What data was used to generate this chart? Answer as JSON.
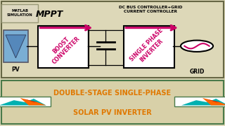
{
  "top_bg": "#ddd8b8",
  "bottom_bg": "#d8d0a8",
  "border_color_top": "#888866",
  "border_color_bot": "#4a7a4a",
  "title_text1": "DOUBLE-STAGE SINGLE-PHASE",
  "title_text2": "SOLAR PV INVERTER",
  "title_color": "#e07800",
  "matlab_label": "MATLAB\nSIMULATION",
  "mppt_label": "MPPT",
  "dc_bus_label": "DC BUS CONTROLLER+GRID\nCURRENT CONTROLLER",
  "boost_label": "BOOST\nCONVERTER",
  "inverter_label": "SINGLE PHASE\nINVERTER",
  "pv_label": "PV",
  "grid_label": "GRID",
  "arrow_color": "#cc0066",
  "pv_fill": "#7aaed4",
  "pv_triangle": "#4a7aaa",
  "box_fill": "#ffffff",
  "box_border": "#000000",
  "wire_color": "#000000",
  "grid_circle_color": "#cc0066",
  "matlab_box_bg": "#ddd8c0",
  "matlab_box_border": "#888888"
}
